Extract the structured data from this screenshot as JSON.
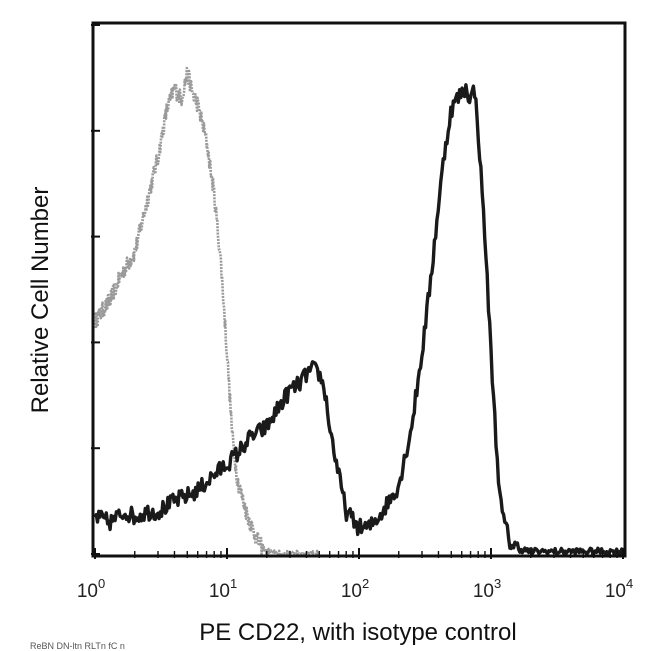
{
  "chart_data": {
    "type": "line",
    "title": "",
    "xlabel": "PE CD22, with isotype control",
    "ylabel": "Relative Cell Number",
    "x_scale": "log",
    "xlim": [
      1,
      10000
    ],
    "ylim": [
      0,
      100
    ],
    "x_ticks": [
      {
        "value": 1,
        "base": "10",
        "exp": "0"
      },
      {
        "value": 10,
        "base": "10",
        "exp": "1"
      },
      {
        "value": 100,
        "base": "10",
        "exp": "2"
      },
      {
        "value": 1000,
        "base": "10",
        "exp": "3"
      },
      {
        "value": 10000,
        "base": "10",
        "exp": "4"
      }
    ],
    "y_ticks": [
      0,
      20,
      40,
      60,
      80,
      100
    ],
    "grid": false,
    "legend": "none",
    "series": [
      {
        "role": "isotype",
        "color": "#9a9a9a",
        "x": [
          1,
          1.3,
          1.6,
          2,
          2.5,
          3,
          3.5,
          4,
          4.5,
          5,
          5.5,
          6,
          7,
          8,
          9,
          10,
          11,
          12,
          14,
          16,
          18,
          20,
          25,
          30,
          40,
          50
        ],
        "y": [
          44,
          48,
          53,
          57,
          67,
          75,
          84,
          88,
          86,
          91,
          87,
          85,
          78,
          68,
          55,
          38,
          22,
          14,
          8,
          4,
          1.5,
          0.5,
          0,
          0,
          0,
          0
        ]
      },
      {
        "role": "CD22",
        "color": "#1a1a1a",
        "x": [
          1,
          1.3,
          1.7,
          2,
          2.5,
          3,
          4,
          5,
          6,
          8,
          10,
          12,
          15,
          20,
          25,
          30,
          35,
          40,
          45,
          50,
          55,
          60,
          70,
          80,
          100,
          120,
          150,
          200,
          250,
          300,
          350,
          400,
          450,
          500,
          550,
          600,
          650,
          700,
          750,
          800,
          900,
          1000,
          1100,
          1200,
          1400,
          1600,
          2000,
          3000,
          5000,
          7000,
          10000
        ],
        "y": [
          7,
          6,
          8,
          7,
          8,
          8,
          10,
          11,
          12,
          15,
          17,
          19,
          22,
          24,
          28,
          31,
          32,
          34,
          35,
          34,
          31,
          24,
          15,
          8,
          5,
          5,
          8,
          13,
          24,
          38,
          52,
          66,
          77,
          84,
          86,
          87,
          88,
          86,
          88,
          80,
          60,
          38,
          20,
          8,
          2,
          1,
          0.5,
          0.5,
          0.5,
          0.5,
          0.5
        ]
      }
    ]
  },
  "footer": {
    "text": "ReBN DN-ltn RLTn fC n  "
  }
}
